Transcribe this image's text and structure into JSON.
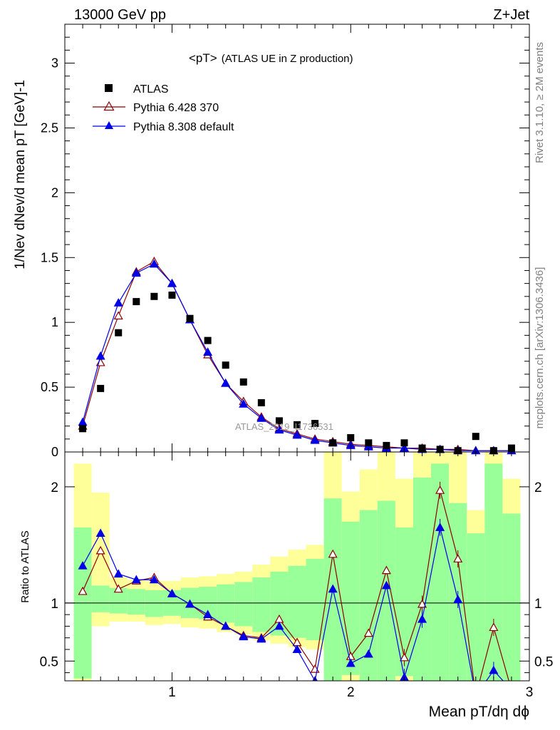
{
  "header": {
    "left_title": "13000 GeV pp",
    "right_title": "Z+Jet",
    "plot_title": "<pT>",
    "plot_subtitle": "(ATLAS UE in Z production)"
  },
  "side_labels": {
    "rivet": "Rivet 3.1.10, ≥ 2M events",
    "mcplots": "mcplots.cern.ch [arXiv:1306.3436]"
  },
  "watermark": "ATLAS_2019_I1736531",
  "colors": {
    "data": "#000000",
    "pythia6": "#8b0000",
    "pythia8": "#0000e6",
    "band_inner": "#99ff99",
    "band_outer": "#ffff99"
  },
  "chart_data": [
    {
      "type": "scatter",
      "panel": "main",
      "title": "<pT> (ATLAS UE in Z production)",
      "xlabel": "Mean pT/dη dϕ",
      "ylabel": "1/Nev dNev/d mean pT [GeV]-1",
      "xlim": [
        0.4,
        3.0
      ],
      "ylim": [
        0,
        3.3
      ],
      "yticks": [
        "0",
        "0.5",
        "1",
        "1.5",
        "2",
        "2.5",
        "3"
      ],
      "legend": [
        "ATLAS",
        "Pythia 6.428 370",
        "Pythia 8.308 default"
      ],
      "x": [
        0.5,
        0.6,
        0.7,
        0.8,
        0.9,
        1.0,
        1.1,
        1.2,
        1.3,
        1.4,
        1.5,
        1.6,
        1.7,
        1.8,
        1.9,
        2.0,
        2.1,
        2.2,
        2.3,
        2.4,
        2.5,
        2.6,
        2.7,
        2.8,
        2.9
      ],
      "series": [
        {
          "name": "ATLAS",
          "values": [
            0.18,
            0.49,
            0.92,
            1.16,
            1.2,
            1.21,
            1.03,
            0.86,
            0.67,
            0.54,
            0.38,
            0.24,
            0.21,
            0.22,
            0.07,
            0.11,
            0.07,
            0.05,
            0.07,
            0.03,
            0.02,
            0.01,
            0.12,
            0.01,
            0.03
          ]
        },
        {
          "name": "Pythia 6.428 370",
          "values": [
            0.2,
            0.69,
            1.05,
            1.39,
            1.47,
            1.3,
            1.02,
            0.75,
            0.53,
            0.39,
            0.27,
            0.18,
            0.14,
            0.1,
            0.08,
            0.06,
            0.05,
            0.04,
            0.03,
            0.03,
            0.02,
            0.02,
            0.01,
            0.01,
            0.01
          ]
        },
        {
          "name": "Pythia 8.308 default",
          "values": [
            0.23,
            0.74,
            1.15,
            1.38,
            1.45,
            1.3,
            1.02,
            0.77,
            0.53,
            0.37,
            0.26,
            0.17,
            0.13,
            0.09,
            0.07,
            0.05,
            0.04,
            0.03,
            0.03,
            0.02,
            0.02,
            0.01,
            0.01,
            0.01,
            0.01
          ]
        }
      ]
    },
    {
      "type": "line",
      "panel": "ratio",
      "xlabel": "Mean pT/dη dϕ",
      "ylabel": "Ratio to ATLAS",
      "xlim": [
        0.4,
        3.0
      ],
      "ylim": [
        0.33,
        2.3
      ],
      "xticks": [
        "1",
        "2",
        "3"
      ],
      "yticks": [
        "0.5",
        "1",
        "2"
      ],
      "x": [
        0.5,
        0.6,
        0.7,
        0.8,
        0.9,
        1.0,
        1.1,
        1.2,
        1.3,
        1.4,
        1.5,
        1.6,
        1.7,
        1.8,
        1.9,
        2.0,
        2.1,
        2.2,
        2.3,
        2.4,
        2.5,
        2.6,
        2.7,
        2.8,
        2.9
      ],
      "band_outer_lo": [
        0.33,
        0.8,
        0.84,
        0.84,
        0.81,
        0.82,
        0.79,
        0.78,
        0.75,
        0.73,
        0.68,
        0.65,
        0.62,
        0.6,
        0.33,
        0.33,
        0.33,
        0.33,
        0.33,
        0.33,
        0.33,
        0.33,
        0.33,
        0.33,
        0.33
      ],
      "band_outer_hi": [
        2.2,
        1.95,
        1.22,
        1.2,
        1.19,
        1.19,
        1.22,
        1.23,
        1.25,
        1.27,
        1.33,
        1.4,
        1.46,
        1.5,
        2.3,
        1.96,
        2.15,
        2.3,
        2.07,
        2.3,
        2.3,
        2.3,
        1.8,
        2.3,
        2.07
      ],
      "band_inner_lo": [
        0.35,
        0.92,
        0.91,
        0.9,
        0.88,
        0.89,
        0.87,
        0.86,
        0.83,
        0.8,
        0.75,
        0.72,
        0.7,
        0.68,
        0.33,
        0.38,
        0.33,
        0.33,
        0.37,
        0.33,
        0.33,
        0.33,
        0.33,
        0.33,
        0.33
      ],
      "band_inner_hi": [
        1.65,
        1.15,
        1.13,
        1.12,
        1.11,
        1.11,
        1.13,
        1.14,
        1.16,
        1.18,
        1.22,
        1.27,
        1.32,
        1.38,
        1.9,
        1.7,
        1.8,
        1.88,
        1.65,
        2.08,
        2.2,
        1.86,
        1.6,
        2.2,
        1.77
      ],
      "series": [
        {
          "name": "Pythia 6.428 370",
          "values": [
            1.1,
            1.45,
            1.12,
            1.19,
            1.22,
            1.08,
            0.99,
            0.88,
            0.8,
            0.72,
            0.7,
            0.86,
            0.66,
            0.43,
            1.42,
            0.54,
            0.74,
            1.28,
            0.53,
            0.99,
            1.97,
            1.38,
            0.2,
            0.79,
            0.25
          ]
        },
        {
          "name": "Pythia 8.308 default",
          "values": [
            1.32,
            1.6,
            1.25,
            1.2,
            1.2,
            1.08,
            0.99,
            0.9,
            0.8,
            0.71,
            0.69,
            0.8,
            0.6,
            0.33,
            1.12,
            0.48,
            0.56,
            1.15,
            0.36,
            0.86,
            1.65,
            1.03,
            0.2,
            0.42,
            0.25
          ]
        }
      ]
    }
  ]
}
